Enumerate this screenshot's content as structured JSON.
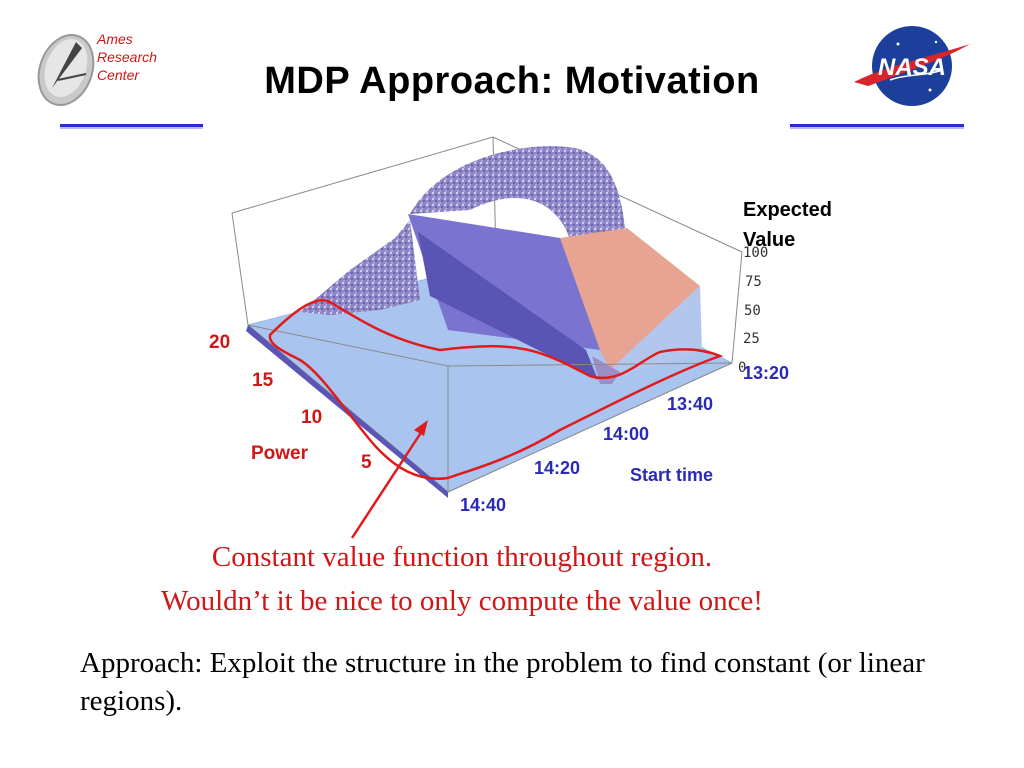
{
  "header": {
    "ames_logo_lines": [
      "Ames",
      "Research",
      "Center"
    ],
    "title": "MDP Approach: Motivation",
    "nasa_logo": "NASA"
  },
  "chart_data": {
    "type": "surface3d",
    "zlabel_line1": "Expected",
    "zlabel_line2": "Value",
    "z_ticks": [
      "0",
      "25",
      "50",
      "75",
      "100"
    ],
    "x_axis_label": "Start time",
    "x_ticks": [
      "13:20",
      "13:40",
      "14:00",
      "14:20",
      "14:40"
    ],
    "y_axis_label": "Power",
    "y_ticks": [
      "20",
      "15",
      "10",
      "5"
    ],
    "colors": {
      "surface": "#a9c4ee",
      "plateau": "#e8a493",
      "ridge": "#6e68c8",
      "outline": "#e01b1b"
    }
  },
  "captions": {
    "line1": "Constant value function throughout region.",
    "line2": "Wouldn’t it be nice to only compute the value once!",
    "approach": "Approach: Exploit the structure in the problem to find constant (or linear regions)."
  }
}
